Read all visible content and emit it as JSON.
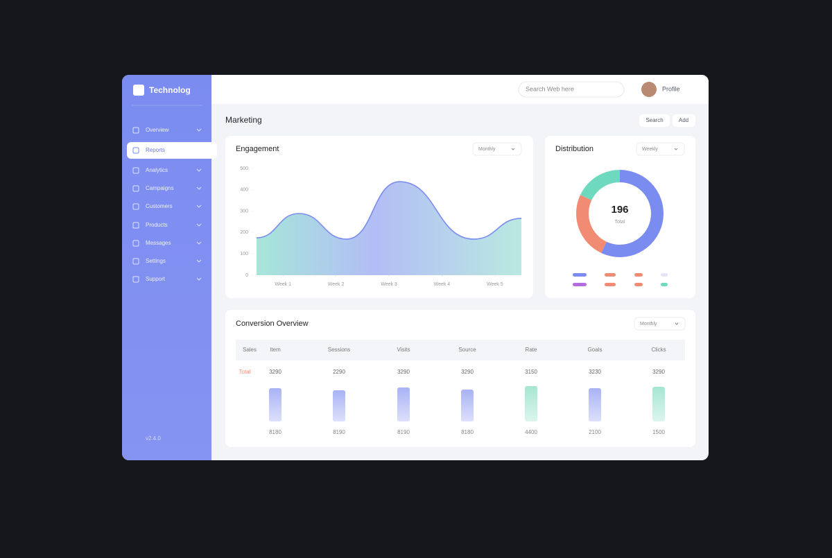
{
  "sidebar": {
    "brand": "Technolog",
    "menu": [
      "Overview",
      "Reports",
      "Analytics",
      "Campaigns",
      "Customers",
      "Products",
      "Messages",
      "Settings",
      "Support"
    ],
    "footer": "v2.4.0"
  },
  "topbar": {
    "search": "Search Web here",
    "user": "Profile"
  },
  "page": {
    "title": "Marketing",
    "buttons": [
      "Search",
      "Add"
    ]
  },
  "chart_data": [
    {
      "type": "line",
      "title": "Engagement",
      "filter": "Monthly",
      "x": [
        0,
        1.6,
        3.4,
        5.4,
        8.2,
        10
      ],
      "series": [
        {
          "color": "#7b8cf0",
          "values": [
            175,
            289,
            169,
            438,
            169,
            266
          ]
        }
      ],
      "xlim": [
        0,
        10
      ],
      "xticks": [
        {
          "value": 1,
          "label": "Week 1"
        },
        {
          "value": 3,
          "label": "Week 2"
        },
        {
          "value": 5,
          "label": "Week 3"
        },
        {
          "value": 7,
          "label": "Week 4"
        },
        {
          "value": 9,
          "label": "Week 5"
        }
      ],
      "ylim": [
        0,
        500
      ],
      "yticks": [
        0,
        100,
        200,
        300,
        400,
        500
      ]
    },
    {
      "type": "pie",
      "title": "Distribution",
      "filter": "Weekly",
      "values": [
        57,
        25,
        18
      ],
      "colors": [
        "#7b8cf0",
        "#f28b74",
        "#6fd9c0"
      ],
      "total": 196,
      "total_label": "Total"
    },
    {
      "type": "bar",
      "title": "Conversion Overview",
      "filter": "Monthly",
      "columns": [
        "Sales",
        "Item",
        "Sessions",
        "Visits",
        "Source",
        "Rate",
        "Goals",
        "Clicks"
      ],
      "row_label": "Total",
      "top_labels": [
        "3290",
        "2290",
        "3290",
        "3290",
        "3150",
        "3230",
        "3290"
      ],
      "values": [
        48,
        45,
        49,
        46,
        51,
        48,
        50
      ],
      "colors": [
        "#a9b3f5",
        "#a9b3f5",
        "#a9b3f5",
        "#a9b3f5",
        "#a6e6d3",
        "#a9b3f5",
        "#a6e6d3"
      ],
      "ylim": [
        0,
        60
      ],
      "bottom_labels": [
        "8180",
        "8190",
        "8190",
        "8180",
        "4400",
        "2100",
        "1500"
      ]
    }
  ]
}
